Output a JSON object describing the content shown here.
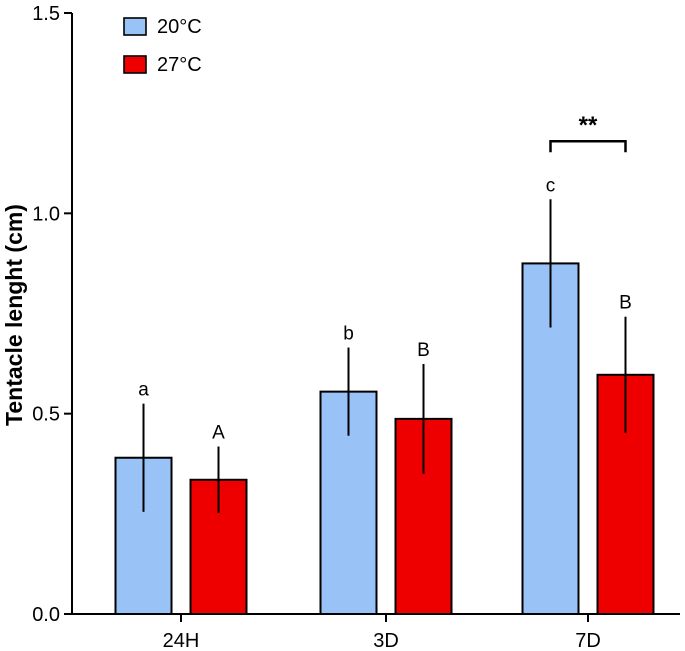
{
  "chart_data": {
    "type": "bar",
    "title": "",
    "xlabel": "",
    "ylabel": "Tentacle lenght (cm)",
    "ylim": [
      0,
      1.5
    ],
    "yticks": [
      0.0,
      0.5,
      1.0,
      1.5
    ],
    "ytick_labels": [
      "0.0",
      "0.5",
      "1.0",
      "1.5"
    ],
    "grid": false,
    "legend_position": "top-left",
    "categories": [
      "24H",
      "3D",
      "7D"
    ],
    "series": [
      {
        "name": "20°C",
        "color": "#99c2f7",
        "values": [
          0.39,
          0.555,
          0.875
        ],
        "errors": [
          0.135,
          0.11,
          0.16
        ],
        "letters": [
          "a",
          "b",
          "c"
        ]
      },
      {
        "name": "27°C",
        "color": "#ee0000",
        "values": [
          0.335,
          0.487,
          0.597
        ],
        "errors": [
          0.083,
          0.137,
          0.145
        ],
        "letters": [
          "A",
          "B",
          "B"
        ]
      }
    ],
    "annotations": [
      {
        "text": "**",
        "category": "7D",
        "between": [
          "20°C",
          "27°C"
        ],
        "y": 1.18
      }
    ]
  }
}
